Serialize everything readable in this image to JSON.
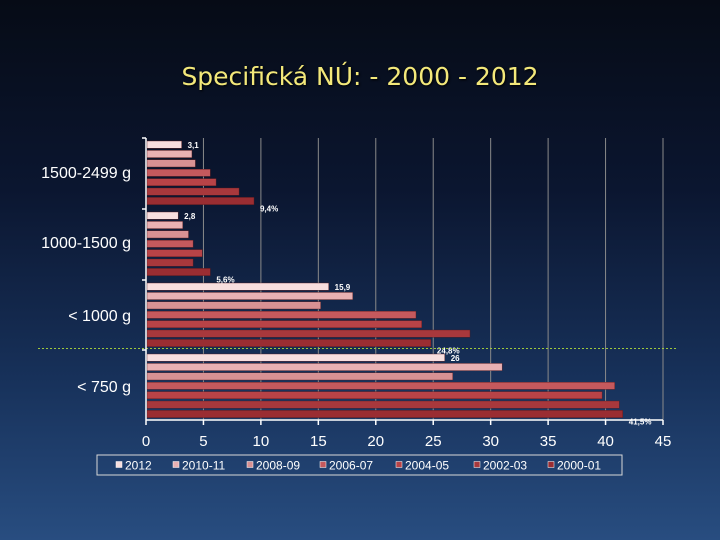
{
  "slide": {
    "title": "Specifická NÚ: - 2000 - 2012"
  },
  "colors": {
    "2012": "#f7dede",
    "2010-11": "#e8b1b3",
    "2008-09": "#d89193",
    "2006-07": "#c5595d",
    "2004-05": "#b84347",
    "2002-03": "#a8383c",
    "2000-01": "#9a2d32",
    "gridline": "#8a8a8a",
    "reference_line": "#9ec83c"
  },
  "chart_data": {
    "type": "bar",
    "orientation": "horizontal",
    "title": "Specifická NÚ: - 2000 - 2012",
    "xlim": [
      0,
      45
    ],
    "x_ticks": [
      "0",
      "5",
      "10",
      "15",
      "20",
      "25",
      "30",
      "35",
      "40",
      "45"
    ],
    "grid": true,
    "legend_position": "bottom",
    "categories": [
      "1500-2499 g",
      "1000-1500 g",
      "< 1000 g",
      "< 750 g"
    ],
    "series": [
      {
        "name": "2012",
        "values": [
          3.1,
          2.8,
          15.9,
          26.0
        ]
      },
      {
        "name": "2010-11",
        "values": [
          4.0,
          3.2,
          18.0,
          31.0
        ]
      },
      {
        "name": "2008-09",
        "values": [
          4.3,
          3.7,
          15.2,
          26.7
        ]
      },
      {
        "name": "2006-07",
        "values": [
          5.6,
          4.1,
          23.5,
          40.8
        ]
      },
      {
        "name": "2004-05",
        "values": [
          6.1,
          4.9,
          24.0,
          39.7
        ]
      },
      {
        "name": "2002-03",
        "values": [
          8.1,
          4.1,
          28.2,
          41.2
        ]
      },
      {
        "name": "2000-01",
        "values": [
          9.4,
          5.6,
          24.8,
          41.5
        ]
      }
    ],
    "data_labels": [
      {
        "category": "1500-2499 g",
        "series": "2012",
        "text": "3,1"
      },
      {
        "category": "1500-2499 g",
        "series": "2000-01",
        "text": "9,4%"
      },
      {
        "category": "1000-1500 g",
        "series": "2012",
        "text": "2,8"
      },
      {
        "category": "1000-1500 g",
        "series": "2000-01",
        "text": "5,6%"
      },
      {
        "category": "< 1000 g",
        "series": "2012",
        "text": "15,9"
      },
      {
        "category": "< 1000 g",
        "series": "2000-01",
        "text": "24,8%"
      },
      {
        "category": "< 750 g",
        "series": "2012",
        "text": "26"
      },
      {
        "category": "< 750 g",
        "series": "2000-01",
        "text": "41,5%"
      }
    ]
  }
}
